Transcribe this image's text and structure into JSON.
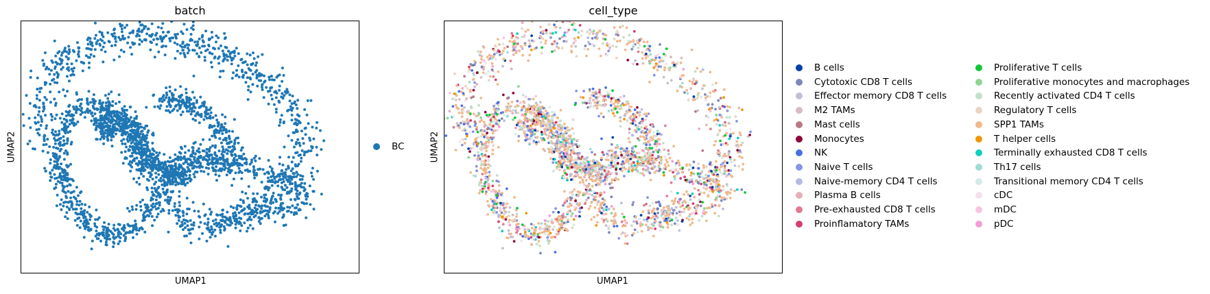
{
  "chart_data": [
    {
      "type": "scatter",
      "title": "batch",
      "xlabel": "UMAP1",
      "ylabel": "UMAP2",
      "grid": false,
      "legend_placement": "right",
      "series": [
        {
          "name": "BC",
          "color": "#1f77b4"
        }
      ]
    },
    {
      "type": "scatter",
      "title": "cell_type",
      "xlabel": "UMAP1",
      "ylabel": "UMAP2",
      "grid": false,
      "legend_placement": "right",
      "series": [
        {
          "name": "B cells",
          "color": "#023fa5"
        },
        {
          "name": "Cytotoxic CD8 T cells",
          "color": "#7d87b9"
        },
        {
          "name": "Effector memory CD8 T cells",
          "color": "#bec1d4"
        },
        {
          "name": "M2 TAMs",
          "color": "#d6bcc0"
        },
        {
          "name": "Mast cells",
          "color": "#bb7784"
        },
        {
          "name": "Monocytes",
          "color": "#8e063b"
        },
        {
          "name": "NK",
          "color": "#4a6fe3"
        },
        {
          "name": "Naive T cells",
          "color": "#8595e1"
        },
        {
          "name": "Naive-memory CD4 T cells",
          "color": "#b5bbe3"
        },
        {
          "name": "Plasma B cells",
          "color": "#e6afb9"
        },
        {
          "name": "Pre-exhausted CD8 T cells",
          "color": "#e07b91"
        },
        {
          "name": "Proinflamatory TAMs",
          "color": "#d33f6a"
        },
        {
          "name": "Proliferative T cells",
          "color": "#11c638"
        },
        {
          "name": "Proliferative monocytes and macrophages",
          "color": "#8dd593"
        },
        {
          "name": "Recently activated CD4 T cells",
          "color": "#c6dec7"
        },
        {
          "name": "Regulatory T cells",
          "color": "#ead3c6"
        },
        {
          "name": "SPP1 TAMs",
          "color": "#f0b98d"
        },
        {
          "name": "T helper cells",
          "color": "#ef9708"
        },
        {
          "name": "Terminally exhausted CD8 T cells",
          "color": "#0fcfc0"
        },
        {
          "name": "Th17 cells",
          "color": "#9cded6"
        },
        {
          "name": "Transitional memory CD4 T cells",
          "color": "#d5eae7"
        },
        {
          "name": "cDC",
          "color": "#f3e1eb"
        },
        {
          "name": "mDC",
          "color": "#f6c4e1"
        },
        {
          "name": "pDC",
          "color": "#f79cd4"
        }
      ]
    }
  ]
}
